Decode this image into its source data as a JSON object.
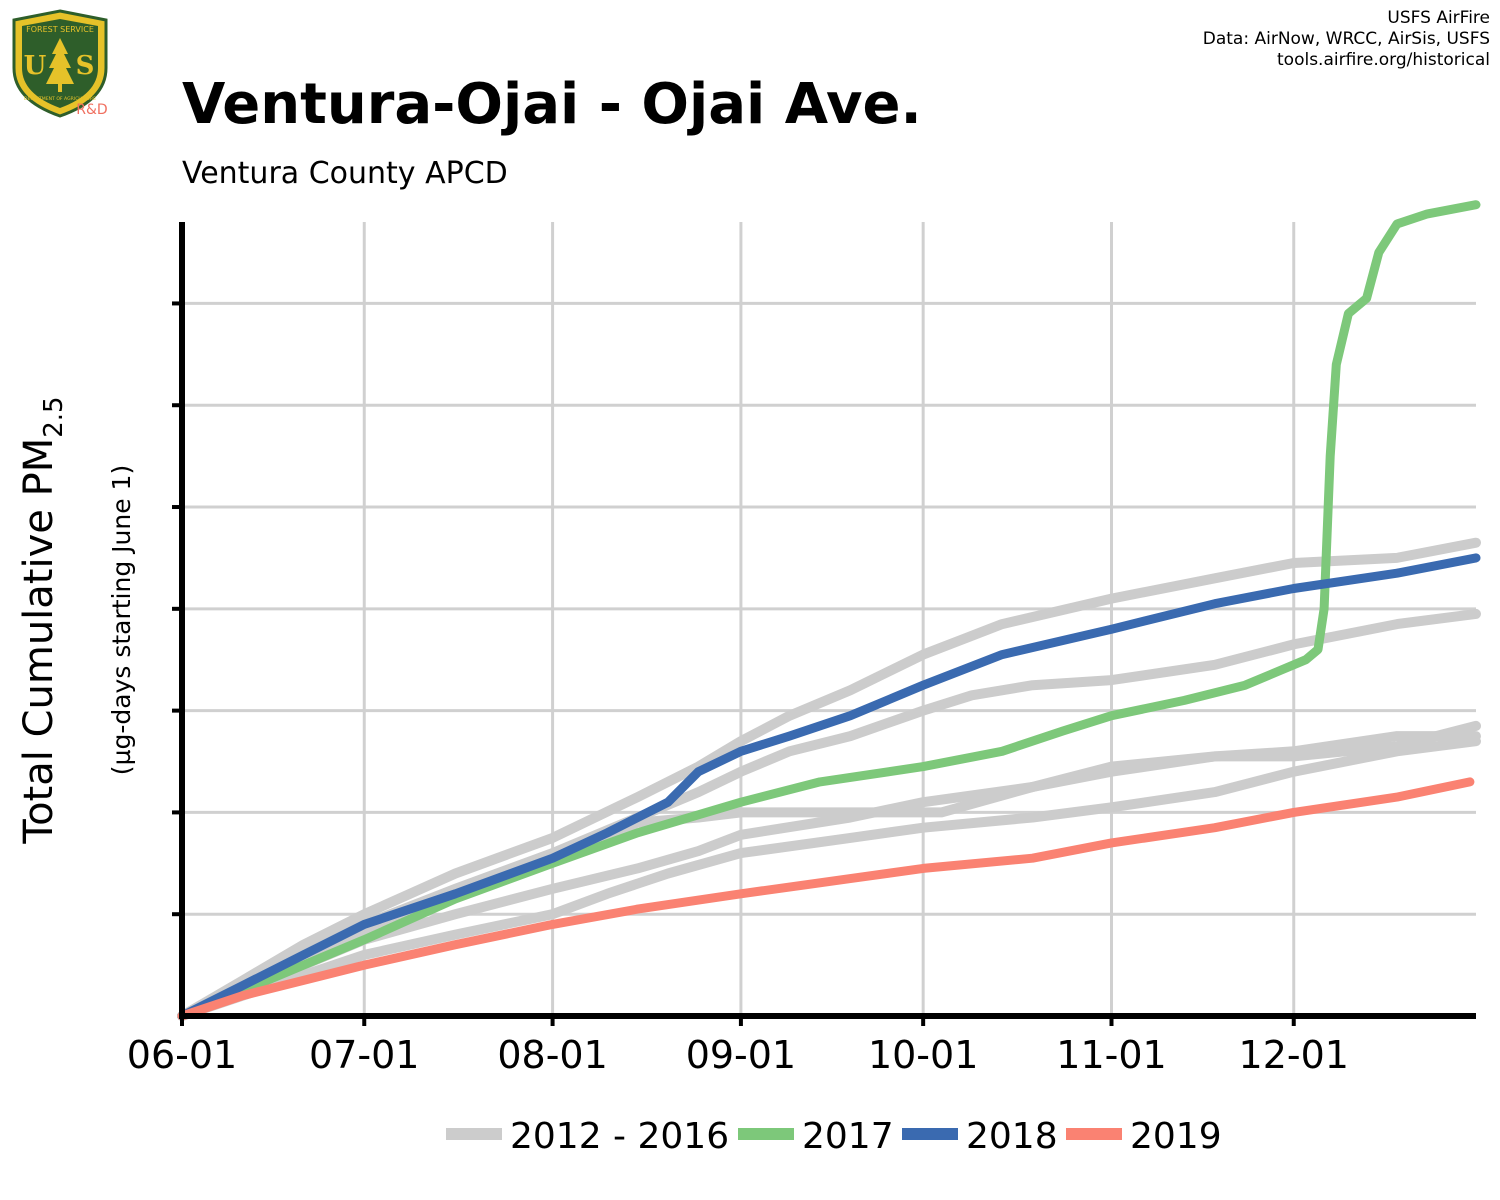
{
  "header": {
    "title": "Ventura-Ojai - Ojai Ave.",
    "subtitle": "Ventura County  APCD",
    "credits": [
      "USFS AirFire",
      "Data: AirNow, WRCC, AirSis, USFS",
      "tools.airfire.org/historical"
    ],
    "logo_text": {
      "top": "FOREST SERVICE",
      "left": "U",
      "right": "S",
      "bottom": "DEPARTMENT OF AGRICULTURE",
      "badge": "R&D"
    }
  },
  "colors": {
    "historical": "#cccccc",
    "y2017": "#7dc87a",
    "y2018": "#3a6ab0",
    "y2019": "#fa8272",
    "grid": "#d0d0d0",
    "logo_green": "#2e5e2a",
    "logo_gold": "#e6c229",
    "badge": "#f07060"
  },
  "chart_data": {
    "type": "line",
    "ylabel_main": "Total Cumulative PM",
    "ylabel_sub": "2.5",
    "ylabel_units": "(µg-days starting June 1)",
    "x_tick_labels": [
      "06-01",
      "07-01",
      "08-01",
      "09-01",
      "10-01",
      "11-01",
      "12-01"
    ],
    "x_tick_days": [
      0,
      30,
      61,
      92,
      122,
      153,
      183
    ],
    "xlim": [
      0,
      213
    ],
    "ylim": [
      0,
      7.8
    ],
    "y_ticks": [
      1,
      2,
      3,
      4,
      5,
      6,
      7
    ],
    "y_tick_labels_shown": false,
    "grid": true,
    "legend_position": "bottom",
    "legend": [
      {
        "label": "2012 - 2016",
        "color_key": "historical"
      },
      {
        "label": "2017",
        "color_key": "y2017"
      },
      {
        "label": "2018",
        "color_key": "y2018"
      },
      {
        "label": "2019",
        "color_key": "y2019"
      }
    ],
    "series": [
      {
        "name": "2012 - 2016",
        "color_key": "historical",
        "x": [
          0,
          10,
          20,
          30,
          45,
          61,
          75,
          85,
          92,
          100,
          110,
          122,
          135,
          153,
          170,
          183,
          200,
          213
        ],
        "y": [
          0,
          0.35,
          0.7,
          1.0,
          1.4,
          1.75,
          2.15,
          2.45,
          2.7,
          2.95,
          3.2,
          3.55,
          3.85,
          4.1,
          4.3,
          4.45,
          4.5,
          4.65
        ]
      },
      {
        "name": "2012 - 2016",
        "color_key": "historical",
        "x": [
          0,
          10,
          20,
          30,
          45,
          61,
          75,
          85,
          92,
          100,
          110,
          122,
          130,
          140,
          153,
          170,
          183,
          200,
          213
        ],
        "y": [
          0,
          0.3,
          0.6,
          0.9,
          1.25,
          1.6,
          1.95,
          2.2,
          2.4,
          2.6,
          2.75,
          3.0,
          3.15,
          3.25,
          3.3,
          3.45,
          3.65,
          3.85,
          3.95
        ]
      },
      {
        "name": "2012 - 2016",
        "color_key": "historical",
        "x": [
          0,
          10,
          20,
          30,
          45,
          61,
          75,
          85,
          92,
          110,
          125,
          140,
          153,
          170,
          183,
          200,
          213
        ],
        "y": [
          0,
          0.25,
          0.55,
          0.85,
          1.2,
          1.55,
          1.9,
          1.95,
          2.0,
          2.0,
          2.0,
          2.25,
          2.45,
          2.55,
          2.55,
          2.65,
          2.85
        ]
      },
      {
        "name": "2012 - 2016",
        "color_key": "historical",
        "x": [
          0,
          10,
          20,
          30,
          45,
          61,
          75,
          85,
          92,
          110,
          122,
          140,
          153,
          170,
          183,
          200,
          213
        ],
        "y": [
          0,
          0.25,
          0.5,
          0.75,
          1.0,
          1.25,
          1.45,
          1.62,
          1.78,
          1.95,
          2.1,
          2.25,
          2.4,
          2.55,
          2.6,
          2.75,
          2.75
        ]
      },
      {
        "name": "2012 - 2016",
        "color_key": "historical",
        "x": [
          0,
          10,
          20,
          30,
          45,
          61,
          70,
          80,
          92,
          110,
          122,
          140,
          153,
          170,
          183,
          200,
          213
        ],
        "y": [
          0,
          0.2,
          0.4,
          0.6,
          0.8,
          1.0,
          1.2,
          1.4,
          1.6,
          1.75,
          1.85,
          1.95,
          2.05,
          2.2,
          2.4,
          2.6,
          2.7
        ]
      },
      {
        "name": "2017",
        "color_key": "y2017",
        "x": [
          0,
          10,
          20,
          30,
          45,
          61,
          75,
          92,
          105,
          122,
          135,
          145,
          153,
          165,
          175,
          181,
          185,
          187,
          188,
          189,
          190,
          192,
          195,
          197,
          200,
          205,
          213
        ],
        "y": [
          0,
          0.25,
          0.5,
          0.75,
          1.15,
          1.5,
          1.8,
          2.1,
          2.3,
          2.45,
          2.6,
          2.8,
          2.95,
          3.1,
          3.25,
          3.4,
          3.5,
          3.6,
          4.0,
          5.5,
          6.4,
          6.9,
          7.05,
          7.5,
          7.78,
          7.88,
          7.97
        ]
      },
      {
        "name": "2018",
        "color_key": "y2018",
        "x": [
          0,
          10,
          20,
          30,
          45,
          61,
          70,
          80,
          85,
          92,
          100,
          110,
          122,
          135,
          153,
          170,
          183,
          200,
          213
        ],
        "y": [
          0,
          0.3,
          0.6,
          0.9,
          1.2,
          1.55,
          1.8,
          2.1,
          2.4,
          2.6,
          2.75,
          2.95,
          3.25,
          3.55,
          3.8,
          4.05,
          4.2,
          4.35,
          4.5
        ]
      },
      {
        "name": "2019",
        "color_key": "y2019",
        "x": [
          0,
          10,
          20,
          30,
          45,
          61,
          75,
          92,
          110,
          122,
          140,
          153,
          170,
          183,
          200,
          212
        ],
        "y": [
          0,
          0.2,
          0.35,
          0.5,
          0.7,
          0.9,
          1.05,
          1.2,
          1.35,
          1.45,
          1.55,
          1.7,
          1.85,
          2.0,
          2.15,
          2.3
        ]
      }
    ]
  }
}
